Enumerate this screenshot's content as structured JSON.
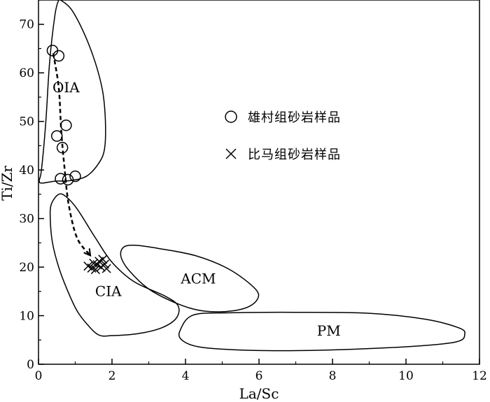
{
  "chart_data": {
    "type": "scatter",
    "title": "",
    "xlabel": "La/Sc",
    "ylabel": "Ti/Zr",
    "xlim": [
      0,
      12
    ],
    "ylim": [
      0,
      75
    ],
    "x_ticks": [
      0,
      2,
      4,
      6,
      8,
      10,
      12
    ],
    "y_ticks": [
      0,
      10,
      20,
      30,
      40,
      50,
      60,
      70
    ],
    "grid": false,
    "legend_position": "right-center",
    "series": [
      {
        "name": "雄村组砂岩样品",
        "marker": "circle",
        "points": [
          {
            "x": 0.38,
            "y": 64.6
          },
          {
            "x": 0.55,
            "y": 63.5
          },
          {
            "x": 0.75,
            "y": 49.2
          },
          {
            "x": 0.5,
            "y": 47.0
          },
          {
            "x": 0.65,
            "y": 44.6
          },
          {
            "x": 1.0,
            "y": 38.7
          },
          {
            "x": 0.8,
            "y": 38.0
          },
          {
            "x": 0.6,
            "y": 38.2
          }
        ]
      },
      {
        "name": "比马组砂岩样品",
        "marker": "x",
        "points": [
          {
            "x": 1.35,
            "y": 20.2
          },
          {
            "x": 1.45,
            "y": 19.8
          },
          {
            "x": 1.5,
            "y": 20.8
          },
          {
            "x": 1.55,
            "y": 19.5
          },
          {
            "x": 1.6,
            "y": 20.5
          },
          {
            "x": 1.65,
            "y": 21.2
          },
          {
            "x": 1.7,
            "y": 20.0
          },
          {
            "x": 1.75,
            "y": 21.6
          },
          {
            "x": 1.8,
            "y": 20.6
          },
          {
            "x": 1.85,
            "y": 19.7
          }
        ]
      }
    ],
    "fields": [
      {
        "label": "OIA",
        "label_at": [
          0.75,
          56
        ],
        "outline": [
          [
            0.6,
            75
          ],
          [
            0.9,
            73
          ],
          [
            1.25,
            68
          ],
          [
            1.55,
            62
          ],
          [
            1.75,
            56
          ],
          [
            1.82,
            50
          ],
          [
            1.8,
            44.5
          ],
          [
            1.65,
            41.5
          ],
          [
            1.3,
            38.7
          ],
          [
            0.85,
            37.8
          ],
          [
            0.45,
            37.7
          ],
          [
            0.1,
            37.3
          ],
          [
            0.02,
            37.8
          ],
          [
            0.08,
            40
          ],
          [
            0.2,
            50
          ],
          [
            0.3,
            62
          ],
          [
            0.45,
            72
          ],
          [
            0.55,
            75
          ]
        ]
      },
      {
        "label": "CIA",
        "label_at": [
          1.9,
          14
        ],
        "outline": [
          [
            0.75,
            34.5
          ],
          [
            0.55,
            35
          ],
          [
            0.35,
            33
          ],
          [
            0.32,
            30
          ],
          [
            0.38,
            25
          ],
          [
            0.55,
            20
          ],
          [
            0.8,
            15
          ],
          [
            1.05,
            11
          ],
          [
            1.35,
            8
          ],
          [
            1.65,
            6
          ],
          [
            2.0,
            5.9
          ],
          [
            2.7,
            6.3
          ],
          [
            3.35,
            7.5
          ],
          [
            3.75,
            9.5
          ],
          [
            3.8,
            12
          ],
          [
            3.45,
            14
          ],
          [
            2.6,
            17
          ],
          [
            2.0,
            21
          ],
          [
            1.55,
            26
          ],
          [
            1.05,
            32
          ]
        ]
      },
      {
        "label": "ACM",
        "label_at": [
          4.35,
          16.6
        ],
        "outline": [
          [
            2.3,
            24
          ],
          [
            2.6,
            24.5
          ],
          [
            3.3,
            23.8
          ],
          [
            4.3,
            22.3
          ],
          [
            5.2,
            19.5
          ],
          [
            5.9,
            15.5
          ],
          [
            5.95,
            13.3
          ],
          [
            5.6,
            11.5
          ],
          [
            4.9,
            10.8
          ],
          [
            4.1,
            11.6
          ],
          [
            3.1,
            15
          ],
          [
            2.5,
            19
          ],
          [
            2.25,
            22
          ]
        ]
      },
      {
        "label": "PM",
        "label_at": [
          7.9,
          5.9
        ],
        "outline": [
          [
            4.2,
            10.1
          ],
          [
            5.2,
            10.6
          ],
          [
            7.0,
            10.7
          ],
          [
            9.0,
            10.5
          ],
          [
            10.5,
            9.3
          ],
          [
            11.4,
            7.6
          ],
          [
            11.6,
            6.3
          ],
          [
            11.3,
            4.5
          ],
          [
            9.5,
            3.4
          ],
          [
            7.0,
            2.8
          ],
          [
            5.3,
            3.0
          ],
          [
            4.35,
            3.6
          ],
          [
            3.9,
            5.0
          ],
          [
            3.85,
            6.9
          ]
        ]
      }
    ],
    "trend_arrow": [
      [
        0.4,
        64
      ],
      [
        0.55,
        57
      ],
      [
        0.62,
        48
      ],
      [
        0.7,
        41
      ],
      [
        0.82,
        33
      ],
      [
        1.05,
        26
      ],
      [
        1.4,
        22.5
      ]
    ]
  }
}
